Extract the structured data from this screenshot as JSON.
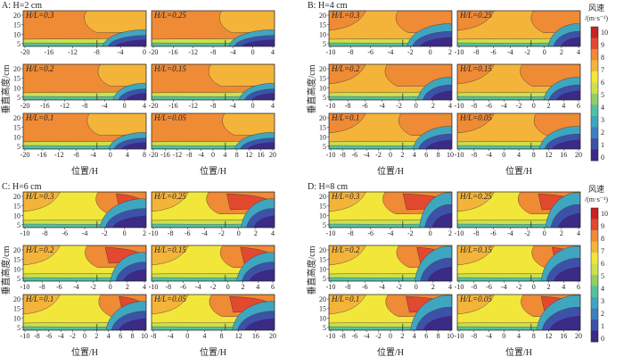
{
  "chart_data": {
    "type": "heatmap",
    "xlabel": "位置/H",
    "ylabel": "垂直高度/cm",
    "colorbar": {
      "title": "风速",
      "unit": "/(m·s⁻¹)",
      "ticks": [
        "10",
        "9",
        "8",
        "7",
        "6",
        "5",
        "4",
        "3",
        "2",
        "1",
        "0"
      ],
      "range": [
        0,
        10
      ],
      "colors": [
        "#3b2a86",
        "#3d52a6",
        "#3f7fc0",
        "#3fa6c0",
        "#55bfa0",
        "#8fcf66",
        "#cde04a",
        "#f2e63a",
        "#f4b43a",
        "#ef8a35",
        "#e2492f",
        "#c8231f"
      ]
    },
    "groups": [
      {
        "label": "A: H=2 cm",
        "panels": [
          {
            "label": "H/L=0.3",
            "xticks": [
              "-20",
              "-16",
              "-12",
              "-8",
              "-4",
              "0"
            ],
            "yticks": [
              "20",
              "15",
              "10",
              "5"
            ]
          },
          {
            "label": "H/L=0.25",
            "xticks": [
              "-20",
              "-16",
              "-12",
              "-8",
              "-4",
              "0",
              "4"
            ],
            "yticks": []
          },
          {
            "label": "H/L=0.2",
            "xticks": [
              "-20",
              "-16",
              "-12",
              "-8",
              "-4",
              "0",
              "4"
            ],
            "yticks": [
              "20",
              "15",
              "10",
              "5"
            ]
          },
          {
            "label": "H/L=0.15",
            "xticks": [
              "-20",
              "-16",
              "-12",
              "-8",
              "-4",
              "0",
              "4"
            ],
            "yticks": []
          },
          {
            "label": "H/L=0.1",
            "xticks": [
              "-20",
              "-16",
              "-12",
              "-8",
              "-4",
              "0",
              "4",
              "8"
            ],
            "yticks": [
              "20",
              "15",
              "10",
              "5"
            ]
          },
          {
            "label": "H/L=0.05",
            "xticks": [
              "-20",
              "-16",
              "-12",
              "-8",
              "-4",
              "0",
              "4",
              "8",
              "12",
              "16",
              "20"
            ],
            "yticks": []
          }
        ]
      },
      {
        "label": "B: H=4 cm",
        "panels": [
          {
            "label": "H/L=0.3",
            "xticks": [
              "-10",
              "-8",
              "-6",
              "-4",
              "-2",
              "0",
              "2"
            ],
            "yticks": [
              "20",
              "15",
              "10",
              "5"
            ]
          },
          {
            "label": "H/L=0.25",
            "xticks": [
              "-10",
              "-8",
              "-6",
              "-4",
              "-2",
              "0",
              "2",
              "4"
            ],
            "yticks": []
          },
          {
            "label": "H/L=0.2",
            "xticks": [
              "-10",
              "-8",
              "-6",
              "-4",
              "-2",
              "0",
              "2",
              "4"
            ],
            "yticks": [
              "20",
              "15",
              "10",
              "5"
            ]
          },
          {
            "label": "H/L=0.15",
            "xticks": [
              "-10",
              "-8",
              "-6",
              "-4",
              "-2",
              "0",
              "2",
              "4",
              "6"
            ],
            "yticks": []
          },
          {
            "label": "H/L=0.1",
            "xticks": [
              "-10",
              "-8",
              "-6",
              "-4",
              "-2",
              "0",
              "2",
              "4",
              "6",
              "8",
              "10"
            ],
            "yticks": [
              "20",
              "15",
              "10",
              "5"
            ]
          },
          {
            "label": "H/L=0.05",
            "xticks": [
              "-10",
              "-8",
              "-4",
              "0",
              "4",
              "8",
              "12",
              "16",
              "20"
            ],
            "yticks": []
          }
        ]
      },
      {
        "label": "C: H=6 cm",
        "panels": [
          {
            "label": "H/L=0.3",
            "xticks": [
              "-10",
              "-8",
              "-6",
              "-4",
              "-2",
              "0",
              "2"
            ],
            "yticks": [
              "20",
              "15",
              "10",
              "5"
            ]
          },
          {
            "label": "H/L=0.25",
            "xticks": [
              "-10",
              "-8",
              "-6",
              "-4",
              "-2",
              "0",
              "2",
              "4"
            ],
            "yticks": []
          },
          {
            "label": "H/L=0.2",
            "xticks": [
              "-10",
              "-8",
              "-6",
              "-4",
              "-2",
              "0",
              "2",
              "4"
            ],
            "yticks": [
              "20",
              "15",
              "10",
              "5"
            ]
          },
          {
            "label": "H/L=0.15",
            "xticks": [
              "-10",
              "-8",
              "-6",
              "-4",
              "-2",
              "0",
              "2",
              "4",
              "6"
            ],
            "yticks": []
          },
          {
            "label": "H/L=0.1",
            "xticks": [
              "-10",
              "-8",
              "-6",
              "-4",
              "-2",
              "0",
              "2",
              "4",
              "6",
              "8",
              "10"
            ],
            "yticks": [
              "20",
              "15",
              "10",
              "5"
            ]
          },
          {
            "label": "H/L=0.05",
            "xticks": [
              "-8",
              "-4",
              "0",
              "4",
              "8",
              "12",
              "16",
              "20"
            ],
            "yticks": []
          }
        ]
      },
      {
        "label": "D: H=8 cm",
        "panels": [
          {
            "label": "H/L=0.3",
            "xticks": [
              "-10",
              "-8",
              "-6",
              "-4",
              "-2",
              "0",
              "2"
            ],
            "yticks": [
              "20",
              "15",
              "10",
              "5"
            ]
          },
          {
            "label": "H/L=0.25",
            "xticks": [
              "-10",
              "-8",
              "-6",
              "-4",
              "-2",
              "0",
              "2",
              "4"
            ],
            "yticks": []
          },
          {
            "label": "H/L=0.2",
            "xticks": [
              "-10",
              "-8",
              "-6",
              "-4",
              "-2",
              "0",
              "2",
              "4"
            ],
            "yticks": [
              "20",
              "15",
              "10",
              "5"
            ]
          },
          {
            "label": "H/L=0.15",
            "xticks": [
              "-10",
              "-8",
              "-6",
              "-4",
              "-2",
              "0",
              "2",
              "4",
              "6"
            ],
            "yticks": []
          },
          {
            "label": "H/L=0.1",
            "xticks": [
              "-10",
              "-8",
              "-6",
              "-4",
              "-2",
              "0",
              "2",
              "4",
              "6",
              "8",
              "10"
            ],
            "yticks": [
              "20",
              "15",
              "10",
              "5"
            ]
          },
          {
            "label": "H/L=0.05",
            "xticks": [
              "-10",
              "-8",
              "-4",
              "0",
              "4",
              "8",
              "12",
              "16",
              "20"
            ],
            "yticks": []
          }
        ]
      }
    ]
  }
}
